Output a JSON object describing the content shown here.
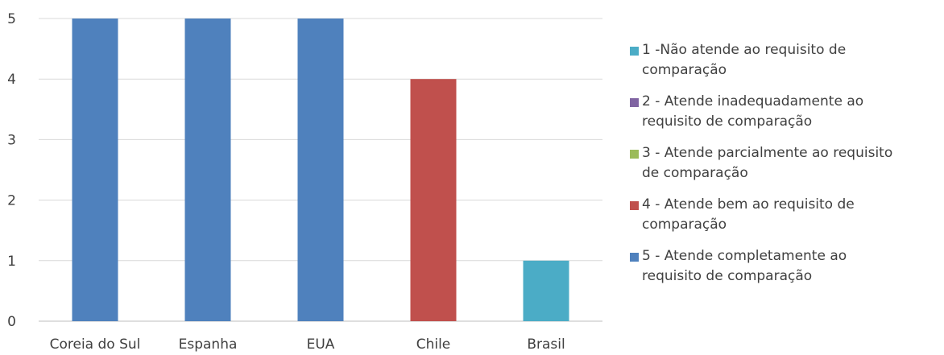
{
  "chart_data": {
    "type": "bar",
    "categories": [
      "Coreia do Sul",
      "Espanha",
      "EUA",
      "Chile",
      "Brasil"
    ],
    "values": [
      5,
      5,
      5,
      4,
      1
    ],
    "levels": [
      5,
      5,
      5,
      4,
      1
    ],
    "ylim": [
      0,
      5
    ],
    "yticks": [
      "0",
      "1",
      "2",
      "3",
      "4",
      "5"
    ],
    "grid": true,
    "legend_position": "right",
    "legend": [
      {
        "level": 1,
        "label": "1 -Não atende ao requisito de\ncomparação",
        "color": "#4BACC6"
      },
      {
        "level": 2,
        "label": "2 - Atende inadequadamente ao\nrequisito de comparação",
        "color": "#8064A2"
      },
      {
        "level": 3,
        "label": "3 - Atende parcialmente ao requisito\nde comparação",
        "color": "#9BBB59"
      },
      {
        "level": 4,
        "label": "4 - Atende bem ao requisito de\ncomparação",
        "color": "#C0504D"
      },
      {
        "level": 5,
        "label": "5 - Atende completamente ao\nrequisito de comparação",
        "color": "#4F81BD"
      }
    ],
    "gridline_color": "#D9D9D9",
    "axis_color": "#BFBFBF"
  }
}
